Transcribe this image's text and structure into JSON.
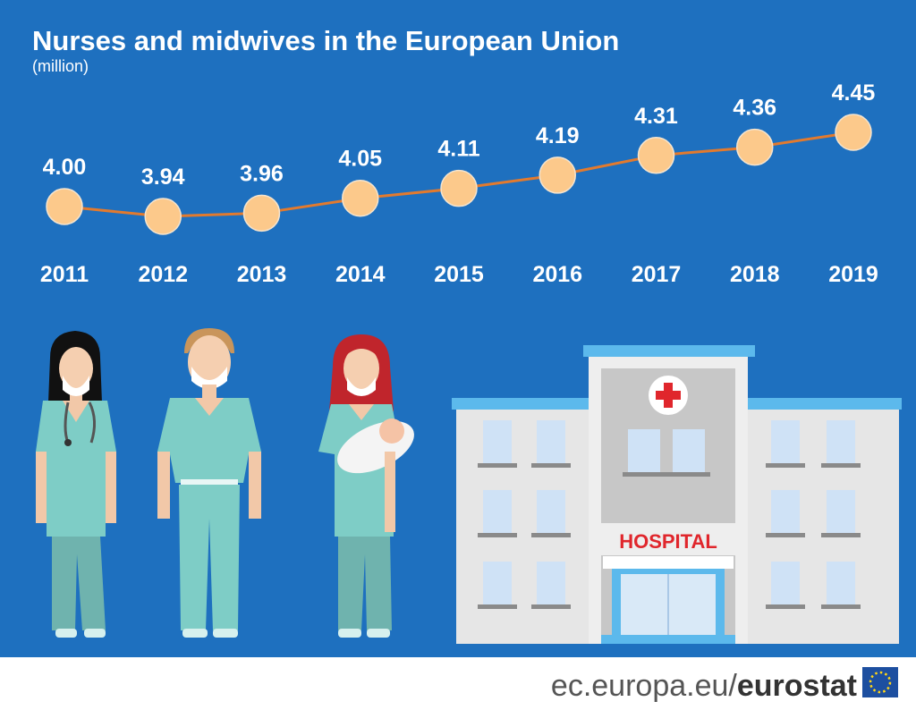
{
  "chart_data": {
    "type": "line",
    "title": "Nurses and midwives in the European Union",
    "subtitle": "(million)",
    "categories": [
      "2011",
      "2012",
      "2013",
      "2014",
      "2015",
      "2016",
      "2017",
      "2018",
      "2019"
    ],
    "values": [
      4.0,
      3.94,
      3.96,
      4.05,
      4.11,
      4.19,
      4.31,
      4.36,
      4.45
    ],
    "value_labels": [
      "4.00",
      "3.94",
      "3.96",
      "4.05",
      "4.11",
      "4.19",
      "4.31",
      "4.36",
      "4.45"
    ],
    "line_color": "#e27a2e",
    "marker_color": "#fcc98b"
  },
  "illustration": {
    "hospital_sign": "HOSPITAL"
  },
  "footer": {
    "site": "ec.europa.eu/",
    "brand": "eurostat"
  }
}
